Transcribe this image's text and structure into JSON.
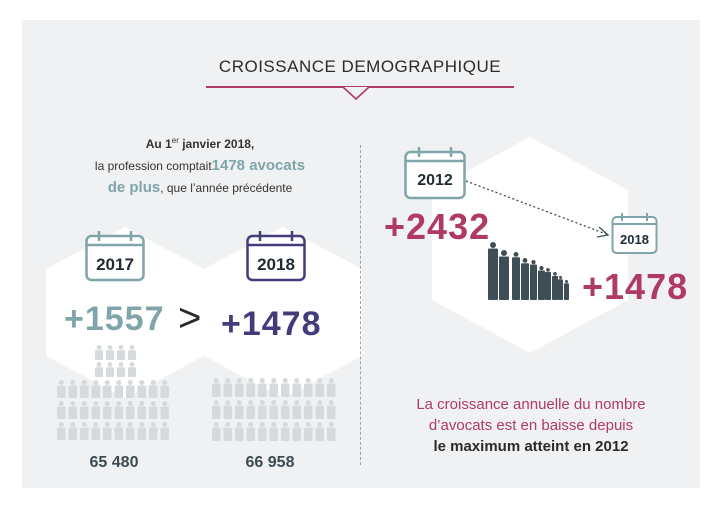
{
  "title": "CROISSANCE DEMOGRAPHIQUE",
  "intro": {
    "line1_pre": "Au 1",
    "line1_sup": "er",
    "line1_post": " janvier 2018,",
    "line2_pre": "la profession comptait",
    "line2_accent": "1478 avocats",
    "line3_accent": "de plus",
    "line3_post": ", que l’année précédente"
  },
  "left": {
    "year_a": "2017",
    "delta_a": "+1557",
    "comparator": ">",
    "year_b": "2018",
    "delta_b": "+1478",
    "count_a": "65 480",
    "count_b": "66 958"
  },
  "right": {
    "year_a": "2012",
    "delta_a": "+2432",
    "year_b": "2018",
    "delta_b": "+1478"
  },
  "conclusion": {
    "line1": "La croissance annuelle du nombre",
    "line2": "d’avocats est en baisse depuis",
    "line3": "le maximum atteint en 2012"
  },
  "colors": {
    "accent": "#b03a66",
    "teal": "#7fa4aa",
    "purple": "#433c7a",
    "dark": "#3d4e57",
    "panel": "#f0f1f2"
  },
  "icons": [
    "calendar-icon",
    "people-icon",
    "arrow-icon"
  ]
}
